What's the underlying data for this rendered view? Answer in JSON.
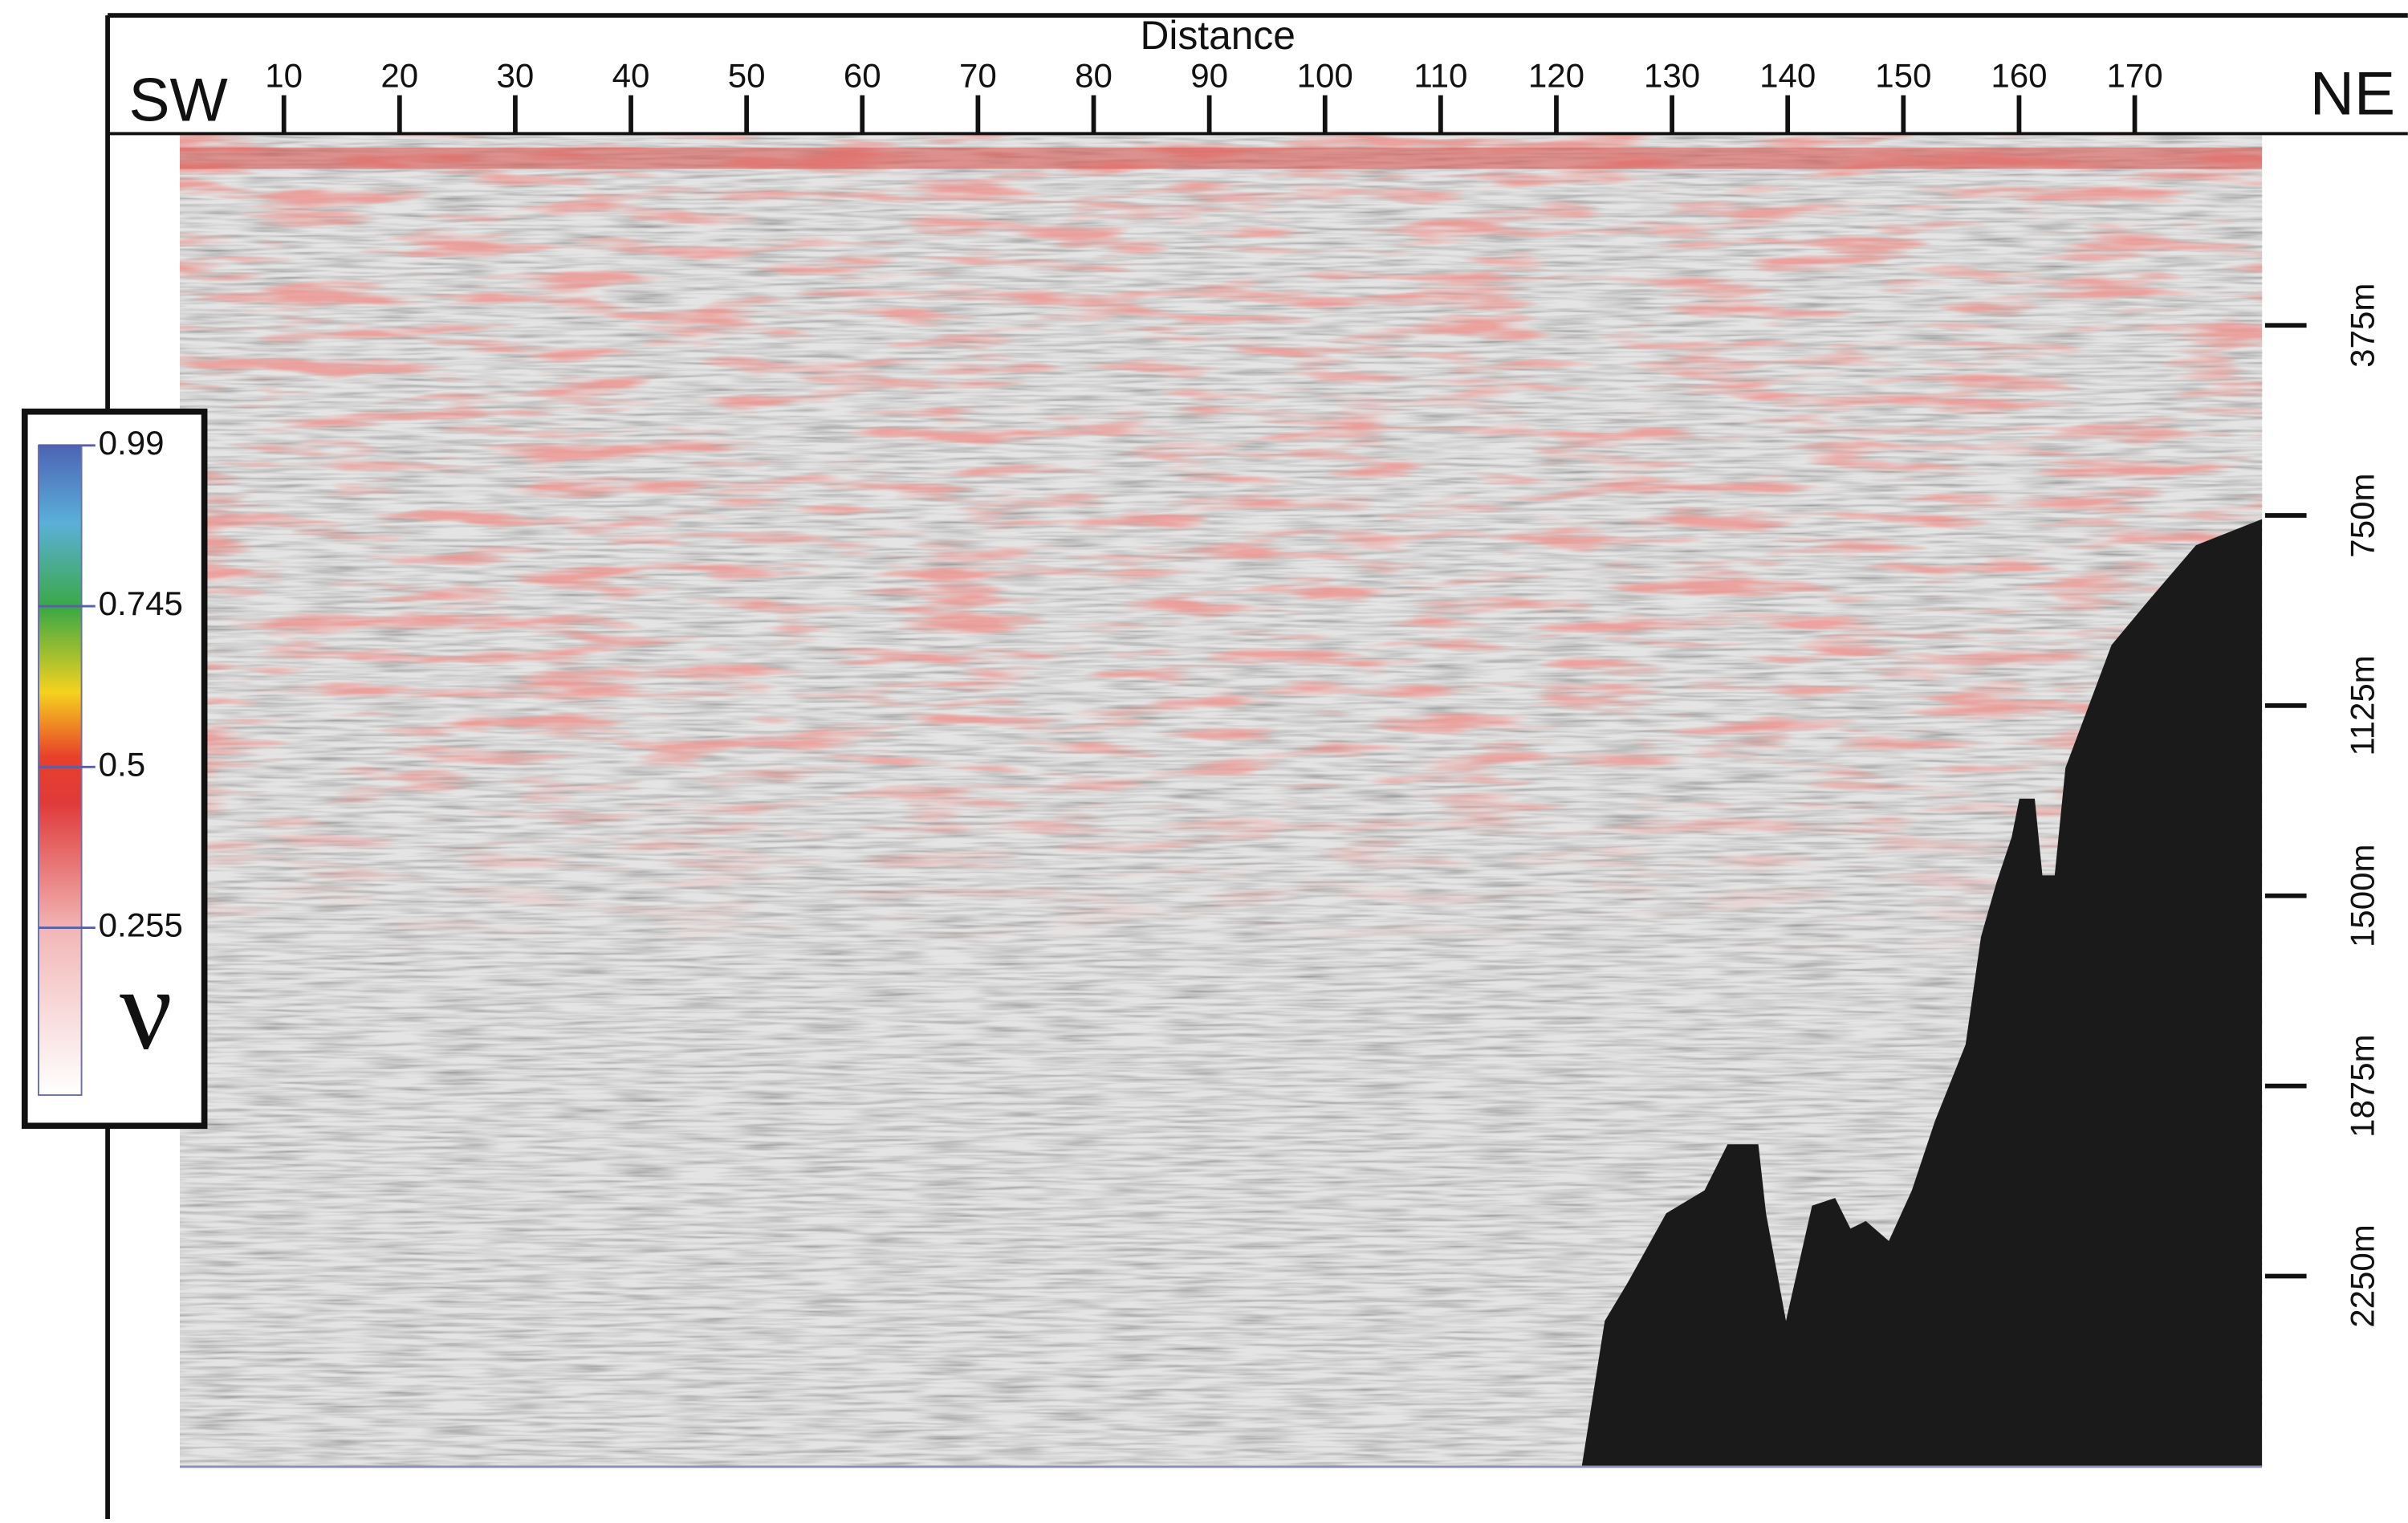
{
  "chart_data": {
    "type": "seismic-section",
    "title": "Distance",
    "left_label": "SW",
    "right_label": "NE",
    "xlim": [
      1,
      181
    ],
    "xticks": [
      10,
      20,
      30,
      40,
      50,
      60,
      70,
      80,
      90,
      100,
      110,
      120,
      130,
      140,
      150,
      160,
      170
    ],
    "ylim": [
      0,
      2626
    ],
    "yticks": [
      {
        "value": 375,
        "label": "375m"
      },
      {
        "value": 750,
        "label": "750m"
      },
      {
        "value": 1125,
        "label": "1125m"
      },
      {
        "value": 1500,
        "label": "1500m"
      },
      {
        "value": 1875,
        "label": "1875m"
      },
      {
        "value": 2250,
        "label": "2250m"
      }
    ],
    "colorbar": {
      "label": "ν",
      "lim": [
        0,
        0.99
      ],
      "ticks": [
        0.99,
        0.745,
        0.5,
        0.255
      ]
    }
  }
}
